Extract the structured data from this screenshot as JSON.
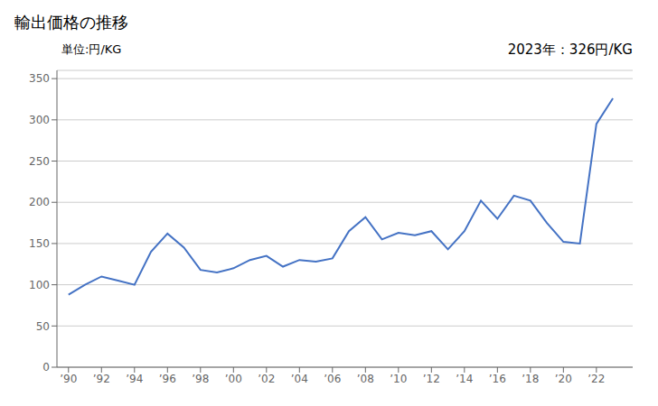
{
  "chart_data": {
    "type": "line",
    "title": "輸出価格の推移",
    "ylabel": "単位:円/KG",
    "annotation": "2023年：326円/KG",
    "x": [
      1990,
      1991,
      1992,
      1993,
      1994,
      1995,
      1996,
      1997,
      1998,
      1999,
      2000,
      2001,
      2002,
      2003,
      2004,
      2005,
      2006,
      2007,
      2008,
      2009,
      2010,
      2011,
      2012,
      2013,
      2014,
      2015,
      2016,
      2017,
      2018,
      2019,
      2020,
      2021,
      2022,
      2023
    ],
    "values": [
      88,
      100,
      110,
      105,
      100,
      140,
      162,
      145,
      118,
      115,
      120,
      130,
      135,
      122,
      130,
      128,
      132,
      165,
      182,
      155,
      163,
      160,
      165,
      143,
      165,
      202,
      180,
      208,
      202,
      175,
      152,
      150,
      295,
      326
    ],
    "color": "#4472C4",
    "xlim": [
      1989.3,
      2024.2
    ],
    "xticks": [
      {
        "value": 1990,
        "label": "’90"
      },
      {
        "value": 1992,
        "label": "’92"
      },
      {
        "value": 1994,
        "label": "’94"
      },
      {
        "value": 1996,
        "label": "’96"
      },
      {
        "value": 1998,
        "label": "’98"
      },
      {
        "value": 2000,
        "label": "’00"
      },
      {
        "value": 2002,
        "label": "’02"
      },
      {
        "value": 2004,
        "label": "’04"
      },
      {
        "value": 2006,
        "label": "’06"
      },
      {
        "value": 2008,
        "label": "’08"
      },
      {
        "value": 2010,
        "label": "’10"
      },
      {
        "value": 2012,
        "label": "’12"
      },
      {
        "value": 2014,
        "label": "’14"
      },
      {
        "value": 2016,
        "label": "’16"
      },
      {
        "value": 2018,
        "label": "’18"
      },
      {
        "value": 2020,
        "label": "’20"
      },
      {
        "value": 2022,
        "label": "’22"
      }
    ],
    "ylim": [
      0,
      360
    ],
    "yticks": [
      0,
      50,
      100,
      150,
      200,
      250,
      300,
      350
    ],
    "grid": "y"
  }
}
